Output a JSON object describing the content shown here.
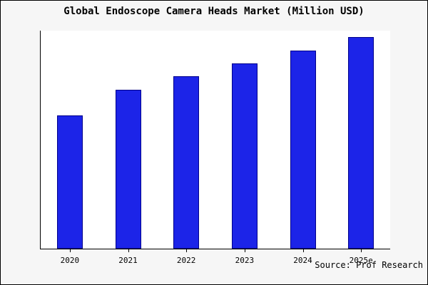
{
  "header": {
    "title": "Global Endoscope Camera Heads Market (Million USD)"
  },
  "footer": {
    "source": "Source: Prof Research"
  },
  "colors": {
    "bar_fill": "#1c24e8",
    "bar_border": "#00008b",
    "background": "#f6f6f6",
    "plot_background": "#ffffff",
    "axis": "#000000"
  },
  "chart_data": {
    "type": "bar",
    "title": "Global Endoscope Camera Heads Market (Million USD)",
    "categories": [
      "2020",
      "2021",
      "2022",
      "2023",
      "2024",
      "2025e"
    ],
    "values": [
      61,
      73,
      79,
      85,
      91,
      97
    ],
    "xlabel": "",
    "ylabel": "",
    "ylim": [
      0,
      100
    ],
    "grid": false,
    "legend": false,
    "y_axis_labels_visible": false,
    "annotation": "Source: Prof Research"
  }
}
